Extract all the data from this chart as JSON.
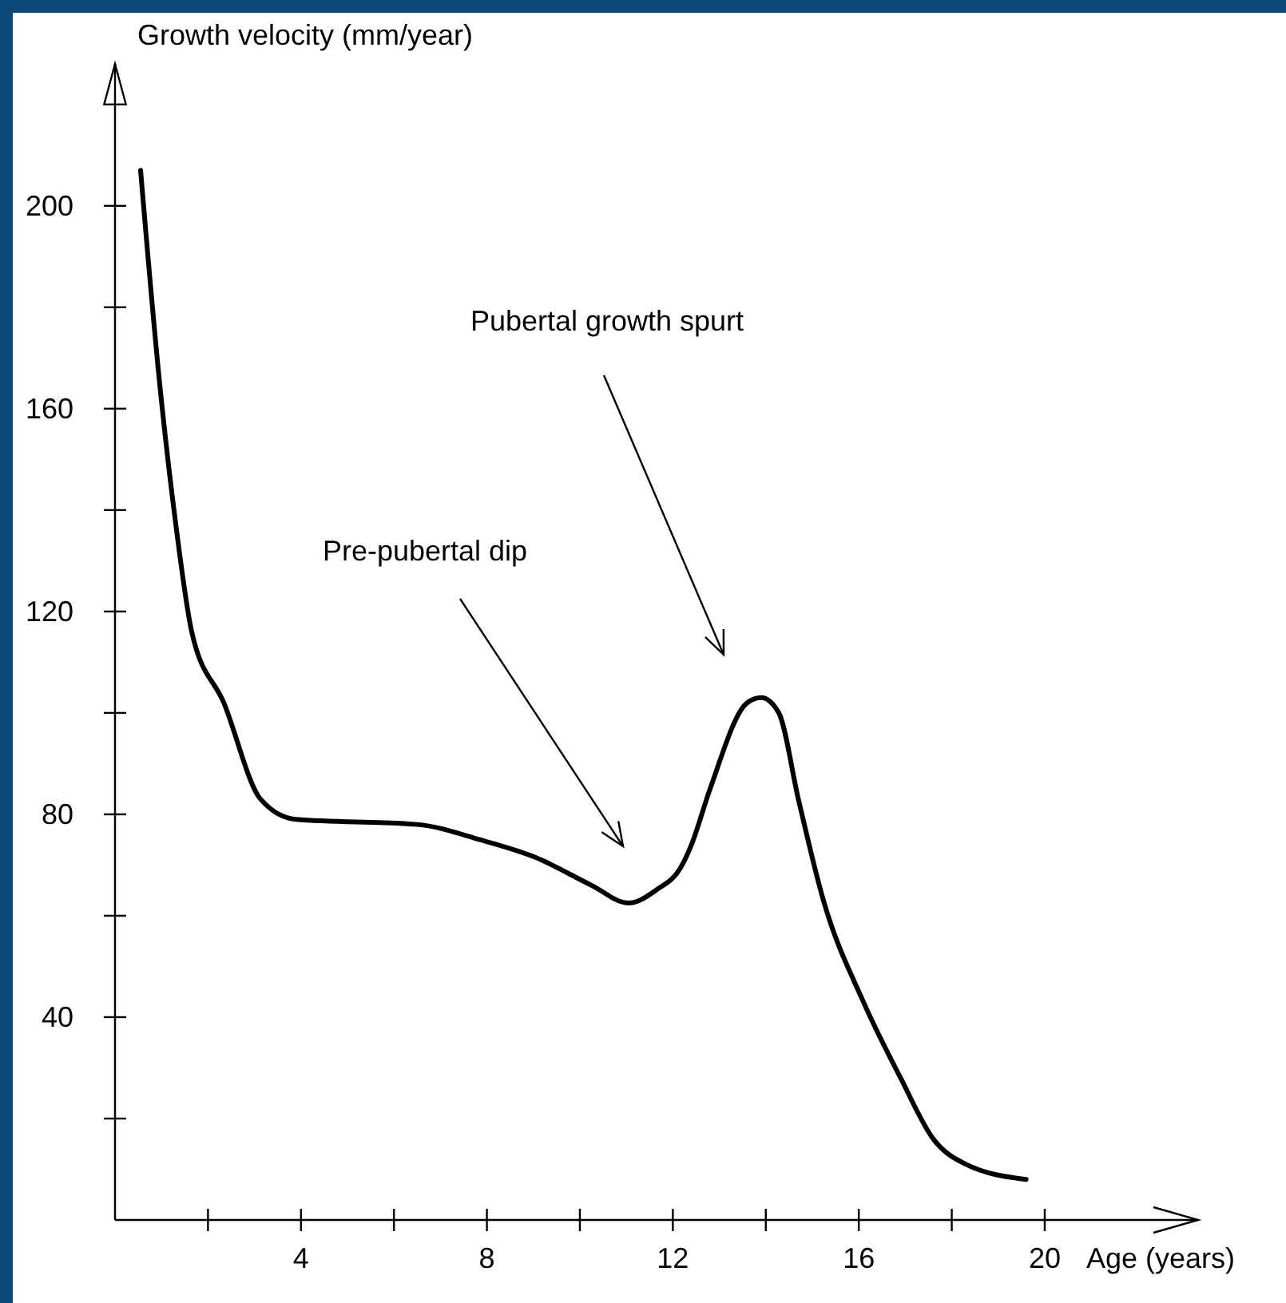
{
  "chart_data": {
    "type": "line",
    "xlabel": "Age (years)",
    "ylabel": "Growth velocity (mm/year)",
    "xlim": [
      0,
      23.3
    ],
    "ylim": [
      0,
      228
    ],
    "xticks": [
      {
        "value": 2,
        "label": null
      },
      4,
      {
        "value": 6,
        "label": null
      },
      8,
      {
        "value": 10,
        "label": null
      },
      12,
      {
        "value": 14,
        "label": null
      },
      16,
      {
        "value": 18,
        "label": null
      },
      20
    ],
    "yticks": [
      {
        "value": 20,
        "label": null
      },
      40,
      {
        "value": 60,
        "label": null
      },
      80,
      {
        "value": 100,
        "label": null
      },
      120,
      {
        "value": 140,
        "label": null
      },
      160,
      {
        "value": 180,
        "label": null
      },
      200,
      {
        "value": 220,
        "label": null
      }
    ],
    "grid": false,
    "marker": "none",
    "line_style": "solid",
    "series": [
      {
        "color": "#000000",
        "x": [
          0.55,
          0.96,
          1.31,
          1.65,
          2.34,
          3.13,
          3.89,
          6.5,
          7.85,
          9.05,
          10.25,
          11.05,
          11.63,
          12.2,
          12.4,
          12.8,
          13.6,
          13.9,
          14.28,
          14.7,
          15.24,
          16.1,
          16.9,
          17.6,
          18.3,
          19.6
        ],
        "values": [
          207,
          165,
          137,
          116,
          102,
          83,
          79,
          78,
          75,
          71.5,
          66,
          62.5,
          65,
          70,
          74,
          85,
          102,
          103,
          100,
          83,
          63,
          43,
          28,
          16,
          11,
          8
        ]
      }
    ],
    "annotations": [
      "Pre-pubertal dip",
      "Pubertal growth spurt"
    ]
  }
}
